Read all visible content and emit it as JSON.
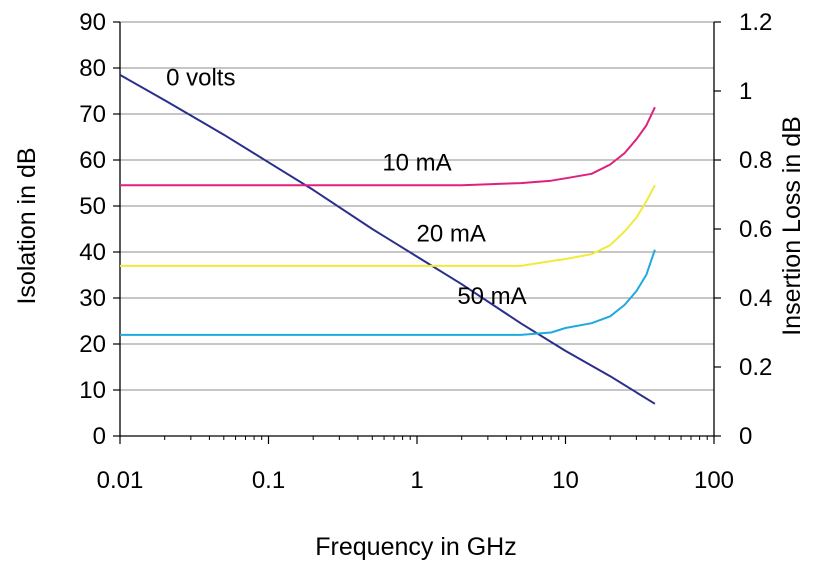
{
  "chart_data": {
    "type": "line",
    "xlabel": "Frequency in GHz",
    "ylabel": "Isolation in dB",
    "y2label": "Insertion Loss in dB",
    "x_scale": "log",
    "xlim": [
      0.01,
      100
    ],
    "ylim": [
      0,
      90
    ],
    "y2lim": [
      0,
      1.2
    ],
    "grid": "horizontal",
    "legend": "none",
    "x_ticks": [
      "0.01",
      "0.1",
      "1",
      "10",
      "100"
    ],
    "y_ticks": [
      "0",
      "10",
      "20",
      "30",
      "40",
      "50",
      "60",
      "70",
      "80",
      "90"
    ],
    "y2_ticks": [
      "0",
      "0.2",
      "0.4",
      "0.6",
      "0.8",
      "1",
      "1.2"
    ],
    "series": [
      {
        "name": "0 volts",
        "axis": "left",
        "color": "#2b2e8c",
        "x": [
          0.01,
          0.02,
          0.05,
          0.1,
          0.2,
          0.5,
          1,
          2,
          5,
          10,
          20,
          40
        ],
        "y": [
          78.5,
          73,
          65.5,
          59.5,
          53.5,
          45,
          39,
          33,
          24.5,
          18.5,
          13,
          7
        ]
      },
      {
        "name": "10 mA",
        "axis": "right",
        "color": "#e0207f",
        "x": [
          0.01,
          0.1,
          1,
          2,
          5,
          8,
          10,
          15,
          20,
          25,
          30,
          35,
          40
        ],
        "y": [
          0.727,
          0.727,
          0.727,
          0.727,
          0.733,
          0.74,
          0.747,
          0.76,
          0.787,
          0.82,
          0.86,
          0.9,
          0.953
        ]
      },
      {
        "name": "20 mA",
        "axis": "right",
        "color": "#f2ea3a",
        "x": [
          0.01,
          0.1,
          1,
          2,
          5,
          8,
          10,
          15,
          20,
          25,
          30,
          35,
          40
        ],
        "y": [
          0.493,
          0.493,
          0.493,
          0.493,
          0.493,
          0.507,
          0.513,
          0.527,
          0.553,
          0.593,
          0.633,
          0.68,
          0.727
        ]
      },
      {
        "name": "50 mA",
        "axis": "right",
        "color": "#1fa9e1",
        "x": [
          0.01,
          0.1,
          1,
          2,
          5,
          8,
          10,
          15,
          20,
          25,
          30,
          35,
          40
        ],
        "y": [
          0.293,
          0.293,
          0.293,
          0.293,
          0.293,
          0.3,
          0.313,
          0.327,
          0.347,
          0.38,
          0.42,
          0.467,
          0.54
        ]
      }
    ],
    "annotations": [
      {
        "text": "0 volts",
        "x": 0.035,
        "y": 74.5,
        "axis": "left"
      },
      {
        "text": "10 mA",
        "x": 1.0,
        "y": 0.747,
        "axis": "right"
      },
      {
        "text": "20 mA",
        "x": 1.7,
        "y": 0.54,
        "axis": "right"
      },
      {
        "text": "50 mA",
        "x": 3.2,
        "y": 0.36,
        "axis": "right"
      }
    ]
  }
}
